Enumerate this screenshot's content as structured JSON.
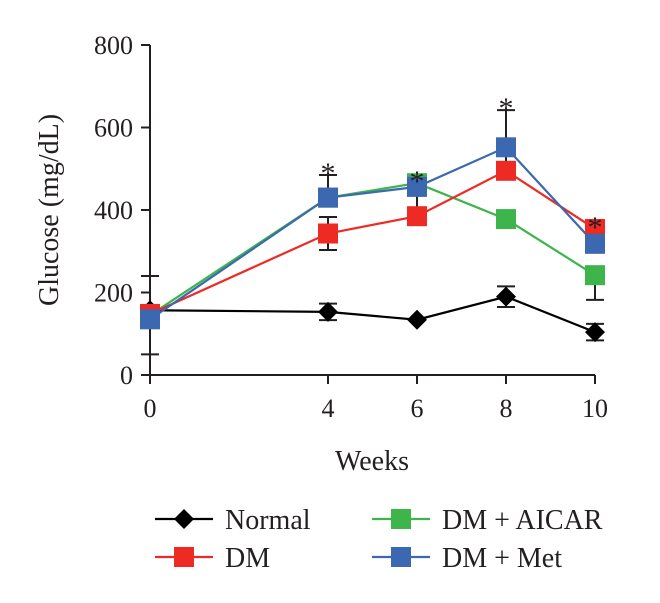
{
  "chart_data": {
    "type": "line",
    "xlabel": "Weeks",
    "ylabel": "Glucose (mg/dL)",
    "x": [
      0,
      4,
      6,
      8,
      10
    ],
    "xticks": [
      "0",
      "4",
      "6",
      "8",
      "10"
    ],
    "ylim": [
      0,
      800
    ],
    "yticks": [
      "0",
      "200",
      "400",
      "600",
      "800"
    ],
    "grid": false,
    "legend_position": "bottom",
    "series": [
      {
        "name": "Normal",
        "marker": "diamond",
        "color": "#000000",
        "values": [
          157,
          153,
          134,
          190,
          104
        ],
        "errors": [
          [
            0,
            0
          ],
          [
            20,
            20
          ],
          [
            0,
            0
          ],
          [
            25,
            25
          ],
          [
            20,
            20
          ]
        ]
      },
      {
        "name": "DM",
        "marker": "square",
        "color": "#ee2a24",
        "values": [
          148,
          343,
          385,
          495,
          354
        ],
        "errors": [
          [
            0,
            0
          ],
          [
            40,
            40
          ],
          [
            0,
            65
          ],
          [
            0,
            65
          ],
          [
            0,
            0
          ]
        ]
      },
      {
        "name": "DM + AICAR",
        "marker": "square",
        "color": "#3db54a",
        "values": [
          145,
          430,
          465,
          378,
          242
        ],
        "errors": [
          [
            0,
            0
          ],
          [
            0,
            0
          ],
          [
            0,
            0
          ],
          [
            0,
            0
          ],
          [
            60,
            0
          ]
        ]
      },
      {
        "name": "DM + Met",
        "marker": "square",
        "color": "#3b68b0",
        "values": [
          135,
          430,
          456,
          552,
          318
        ],
        "errors": [
          [
            85,
            105
          ],
          [
            0,
            55
          ],
          [
            0,
            0
          ],
          [
            0,
            90
          ],
          [
            0,
            0
          ]
        ]
      }
    ],
    "annotations": [
      {
        "text": "*",
        "x": 4
      },
      {
        "text": "*",
        "x": 6
      },
      {
        "text": "*",
        "x": 8
      },
      {
        "text": "*",
        "x": 10
      }
    ]
  }
}
